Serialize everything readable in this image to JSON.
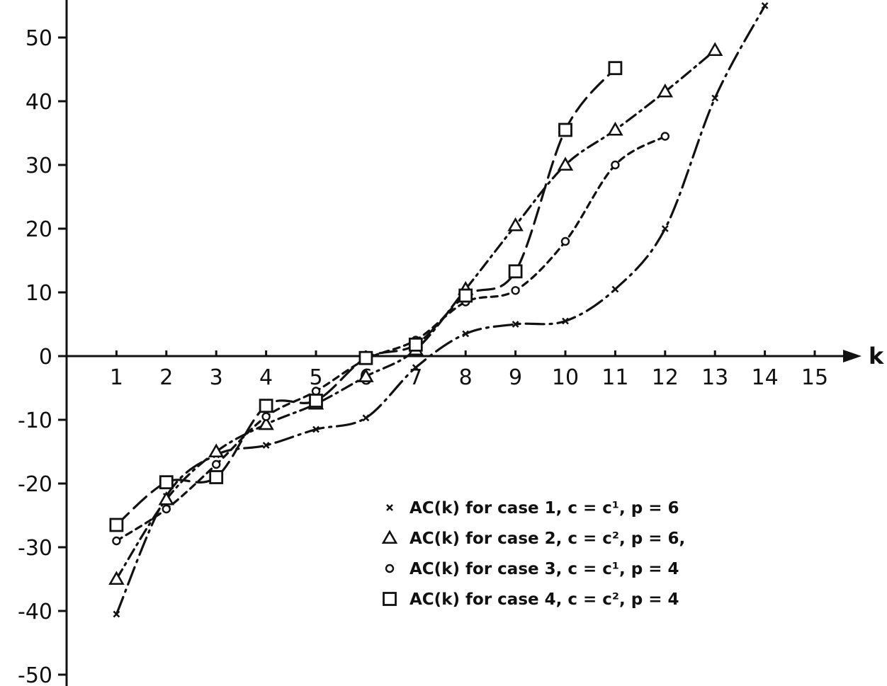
{
  "chart_data": {
    "type": "line",
    "title": "",
    "xlabel": "k",
    "ylabel": "",
    "xlim": [
      0,
      16
    ],
    "ylim": [
      -50,
      55
    ],
    "x_ticks": [
      "1",
      "2",
      "3",
      "4",
      "5",
      "6",
      "7",
      "8",
      "9",
      "10",
      "11",
      "12",
      "13",
      "14",
      "15"
    ],
    "y_ticks": [
      "50",
      "40",
      "30",
      "20",
      "10",
      "0",
      "-10",
      "-20",
      "-30",
      "-40",
      "-50"
    ],
    "grid": false,
    "legend_position": "bottom-right",
    "series": [
      {
        "name": "AC(k) for case 1, c = c¹, p = 6",
        "marker": "x",
        "dash": "long-dash-dot",
        "x": [
          1,
          2,
          3,
          4,
          5,
          6,
          7,
          8,
          9,
          10,
          11,
          12,
          13,
          14
        ],
        "y": [
          -40.5,
          -22,
          -15.5,
          -14,
          -11.5,
          -9.7,
          -1.8,
          3.5,
          5,
          5.5,
          10.5,
          20,
          40.5,
          55
        ]
      },
      {
        "name": "AC(k) for case 2, c = c², p = 6,",
        "marker": "triangle",
        "dash": "dash-dot",
        "x": [
          1,
          2,
          3,
          4,
          5,
          6,
          7,
          8,
          9,
          10,
          11,
          12,
          13
        ],
        "y": [
          -35,
          -22.5,
          -15,
          -10.7,
          -7.5,
          -3.2,
          1,
          10.5,
          20.5,
          30,
          35.5,
          41.5,
          48
        ]
      },
      {
        "name": "AC(k) for case 3, c = c¹, p = 4",
        "marker": "circle",
        "dash": "short-dash",
        "x": [
          1,
          2,
          3,
          4,
          5,
          6,
          7,
          8,
          9,
          10,
          11,
          12
        ],
        "y": [
          -29,
          -24,
          -17,
          -9.5,
          -5.5,
          -0.5,
          2.5,
          8.5,
          10.3,
          18,
          30,
          34.5
        ]
      },
      {
        "name": "AC(k) for case 4, c = c², p = 4",
        "marker": "square",
        "dash": "long-dash",
        "x": [
          1,
          2,
          3,
          4,
          5,
          6,
          7,
          8,
          9,
          10,
          11
        ],
        "y": [
          -26.5,
          -19.8,
          -19,
          -7.8,
          -7,
          -0.3,
          1.8,
          9.5,
          13.3,
          35.5,
          45.2
        ]
      }
    ]
  }
}
